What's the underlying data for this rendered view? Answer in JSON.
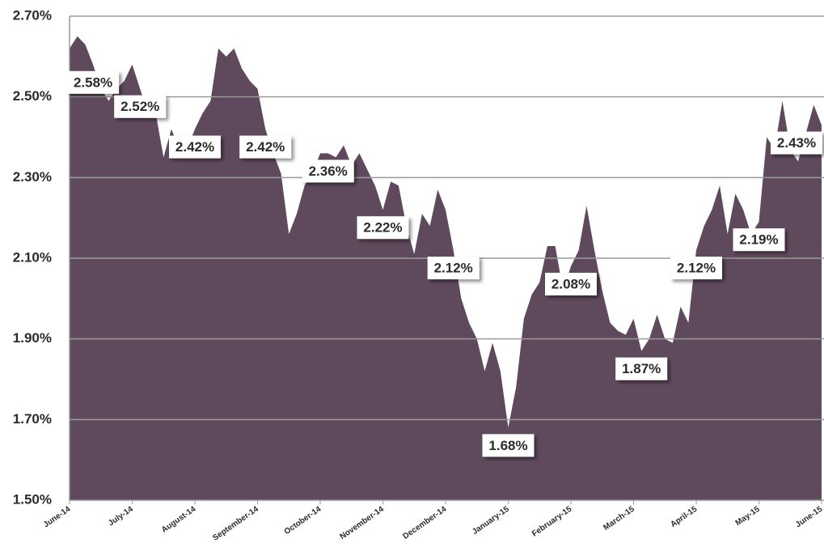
{
  "chart_data": {
    "type": "area",
    "color": "#5f4a5d",
    "grid": true,
    "categories": [
      "June-14",
      null,
      null,
      null,
      null,
      null,
      null,
      null,
      "July-14",
      null,
      null,
      null,
      null,
      null,
      null,
      null,
      "August-14",
      null,
      null,
      null,
      null,
      null,
      null,
      null,
      "September-14",
      null,
      null,
      null,
      null,
      null,
      null,
      null,
      "October-14",
      null,
      null,
      null,
      null,
      null,
      null,
      null,
      "November-14",
      null,
      null,
      null,
      null,
      null,
      null,
      null,
      "December-14",
      null,
      null,
      null,
      null,
      null,
      null,
      null,
      "January-15",
      null,
      null,
      null,
      null,
      null,
      null,
      null,
      "February-15",
      null,
      null,
      null,
      null,
      null,
      null,
      null,
      "March-15",
      null,
      null,
      null,
      null,
      null,
      null,
      null,
      "April-15",
      null,
      null,
      null,
      null,
      null,
      null,
      null,
      "May-15",
      null,
      null,
      null,
      null,
      null,
      null,
      null,
      "June-15"
    ],
    "values": [
      2.62,
      2.65,
      2.63,
      2.58,
      2.52,
      2.49,
      2.52,
      2.54,
      2.58,
      2.52,
      2.46,
      2.46,
      2.35,
      2.42,
      2.37,
      2.37,
      2.42,
      2.46,
      2.49,
      2.62,
      2.6,
      2.62,
      2.57,
      2.54,
      2.52,
      2.42,
      2.36,
      2.31,
      2.16,
      2.21,
      2.28,
      2.31,
      2.36,
      2.36,
      2.35,
      2.38,
      2.33,
      2.36,
      2.32,
      2.28,
      2.22,
      2.29,
      2.28,
      2.18,
      2.11,
      2.21,
      2.18,
      2.27,
      2.22,
      2.12,
      2.0,
      1.94,
      1.9,
      1.82,
      1.89,
      1.82,
      1.68,
      1.78,
      1.95,
      2.01,
      2.04,
      2.13,
      2.13,
      2.02,
      2.08,
      2.12,
      2.23,
      2.12,
      2.02,
      1.94,
      1.92,
      1.91,
      1.95,
      1.87,
      1.9,
      1.96,
      1.9,
      1.89,
      1.98,
      1.94,
      2.12,
      2.18,
      2.22,
      2.28,
      2.16,
      2.26,
      2.22,
      2.16,
      2.19,
      2.4,
      2.37,
      2.49,
      2.37,
      2.34,
      2.41,
      2.48,
      2.43
    ],
    "value_labels": [
      null,
      null,
      null,
      "2.58%",
      null,
      null,
      null,
      null,
      null,
      "2.52%",
      null,
      null,
      null,
      null,
      null,
      null,
      "2.42%",
      null,
      null,
      null,
      null,
      null,
      null,
      null,
      null,
      "2.42%",
      null,
      null,
      null,
      null,
      null,
      null,
      null,
      "2.36%",
      null,
      null,
      null,
      null,
      null,
      null,
      "2.22%",
      null,
      null,
      null,
      null,
      null,
      null,
      null,
      null,
      "2.12%",
      null,
      null,
      null,
      null,
      null,
      null,
      "1.68%",
      null,
      null,
      null,
      null,
      null,
      null,
      null,
      "2.08%",
      null,
      null,
      null,
      null,
      null,
      null,
      null,
      null,
      "1.87%",
      null,
      null,
      null,
      null,
      null,
      null,
      "2.12%",
      null,
      null,
      null,
      null,
      null,
      null,
      null,
      "2.19%",
      null,
      null,
      null,
      null,
      null,
      null,
      null,
      "2.43%"
    ],
    "ylim": [
      1.5,
      2.7
    ],
    "yticks": [
      {
        "value": 1.5,
        "label": "1.50%"
      },
      {
        "value": 1.7,
        "label": "1.70%"
      },
      {
        "value": 1.9,
        "label": "1.90%"
      },
      {
        "value": 2.1,
        "label": "2.10%"
      },
      {
        "value": 2.3,
        "label": "2.30%"
      },
      {
        "value": 2.5,
        "label": "2.50%"
      },
      {
        "value": 2.7,
        "label": "2.70%"
      }
    ]
  }
}
